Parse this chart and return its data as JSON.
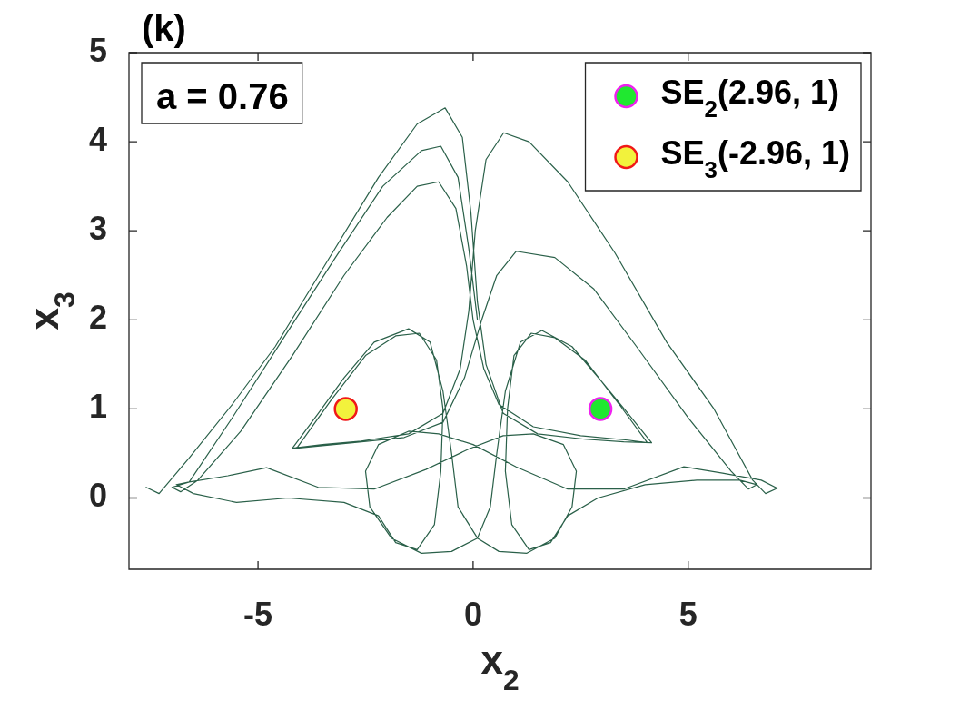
{
  "chart_data": {
    "type": "line",
    "title": "(k)",
    "xlabel": "x$_{2}$",
    "ylabel": "x$_{3}$",
    "annotations": [
      "a = 0.76"
    ],
    "xlim": [
      -8,
      9.25
    ],
    "ylim": [
      -0.8,
      5
    ],
    "xticks": [
      -5,
      0,
      5
    ],
    "yticks": [
      0,
      1,
      2,
      3,
      4,
      5
    ],
    "legend": "top right",
    "marker": "none",
    "line_style": "solid",
    "series": [
      {
        "color": "#2a6049",
        "x": [
          -7.6,
          -7.3,
          -6.6,
          -5.6,
          -4.6,
          -3.4,
          -2.2,
          -1.3,
          -0.65,
          -0.25,
          -0.05,
          0.1,
          0.3,
          0.7,
          1.5,
          2.6,
          3.5,
          4.15,
          3.6,
          3.0,
          2.3,
          1.6,
          1.1,
          0.75,
          0.55,
          0.4,
          0.1,
          -0.5,
          -1.2,
          -1.9,
          -2.4,
          -2.5,
          -2.2,
          -1.5,
          -0.8,
          0,
          1.0,
          2.2,
          3.5,
          4.9,
          5.8,
          6.7,
          7.07,
          6.8,
          6.5,
          5.6,
          4.5,
          3.3,
          2.2,
          1.3,
          0.71,
          0.3,
          0.05,
          -0.1,
          -0.3,
          -0.7,
          -1.5,
          -2.6,
          -3.5,
          -4.2,
          -3.6,
          -3.0,
          -2.3,
          -1.5,
          -1.0,
          -0.7,
          -0.5,
          -0.35,
          0.1,
          0.6,
          1.25,
          1.9,
          2.3,
          2.4,
          2.1,
          1.4,
          0.7,
          -0.1,
          -1.1,
          -2.3,
          -3.6,
          -4.8,
          -5.7,
          -6.6,
          -7.0,
          -6.8,
          -6.4,
          -5.4,
          -4.2,
          -3.0,
          -2.0,
          -1.3,
          -0.8,
          -0.4,
          -0.15,
          0.0,
          0.25,
          0.6,
          1.4,
          2.5,
          3.6,
          4.05,
          3.4,
          2.6,
          1.9,
          1.35,
          0.95,
          0.8,
          0.75,
          0.9,
          1.3,
          1.8,
          2.2,
          2.9,
          4.0,
          5.2,
          6.2,
          6.6,
          6.4,
          6.0,
          5.0,
          3.8,
          2.8,
          1.9,
          1.0,
          0.55,
          0.2,
          -0.2,
          -0.7,
          -1.6,
          -2.8,
          -4.1,
          -3.3,
          -2.5,
          -1.8,
          -1.25,
          -0.85,
          -0.7,
          -0.75,
          -0.9,
          -1.3,
          -1.8,
          -2.2,
          -3.0,
          -4.3,
          -5.5,
          -6.5,
          -6.9,
          -6.6,
          -5.6,
          -4.4,
          -3.2,
          -2.1,
          -1.2,
          -0.75,
          -0.35,
          -0.1,
          0.1
        ],
        "values": [
          0.12,
          0.05,
          0.45,
          1.05,
          1.7,
          2.65,
          3.6,
          4.2,
          4.38,
          4.05,
          3.2,
          2.2,
          1.5,
          0.95,
          0.72,
          0.66,
          0.63,
          0.62,
          0.95,
          1.3,
          1.7,
          1.88,
          1.75,
          1.2,
          0.5,
          -0.1,
          -0.45,
          -0.6,
          -0.62,
          -0.45,
          -0.1,
          0.3,
          0.6,
          0.75,
          0.72,
          0.6,
          0.35,
          0.1,
          0.1,
          0.35,
          0.28,
          0.2,
          0.11,
          0.05,
          0.2,
          1.0,
          1.75,
          2.75,
          3.55,
          4.0,
          4.1,
          3.8,
          3.0,
          2.1,
          1.45,
          0.95,
          0.72,
          0.64,
          0.6,
          0.56,
          0.95,
          1.35,
          1.75,
          1.9,
          1.75,
          1.2,
          0.5,
          -0.1,
          -0.45,
          -0.6,
          -0.62,
          -0.45,
          -0.1,
          0.3,
          0.6,
          0.72,
          0.7,
          0.55,
          0.32,
          0.1,
          0.12,
          0.34,
          0.25,
          0.18,
          0.12,
          0.07,
          0.2,
          0.75,
          1.6,
          2.5,
          3.15,
          3.5,
          3.55,
          3.25,
          2.6,
          2.0,
          1.45,
          1.05,
          0.8,
          0.7,
          0.65,
          0.62,
          1.05,
          1.55,
          1.8,
          1.85,
          1.6,
          1.0,
          0.3,
          -0.3,
          -0.58,
          -0.5,
          -0.2,
          0.0,
          0.15,
          0.2,
          0.2,
          0.15,
          0.1,
          0.3,
          0.9,
          1.7,
          2.35,
          2.7,
          2.77,
          2.5,
          2.0,
          1.35,
          0.85,
          0.68,
          0.62,
          0.56,
          1.1,
          1.6,
          1.82,
          1.85,
          1.55,
          1.0,
          0.3,
          -0.3,
          -0.58,
          -0.5,
          -0.2,
          -0.05,
          0.0,
          -0.05,
          0.05,
          0.15,
          0.18,
          0.9,
          1.8,
          2.7,
          3.5,
          3.9,
          3.95,
          3.6,
          2.8,
          2.0
        ]
      },
      {
        "type": "scatter",
        "name": "SE$_{2}$(2.96, 1)",
        "color": "#20e830",
        "marker": "circle",
        "x": [
          2.96
        ],
        "values": [
          1
        ]
      },
      {
        "type": "scatter",
        "name": "SE$_{3}$(-2.96, 1)",
        "color": "#f2f23c",
        "marker": "circle",
        "x": [
          -2.96
        ],
        "values": [
          1
        ]
      }
    ]
  }
}
